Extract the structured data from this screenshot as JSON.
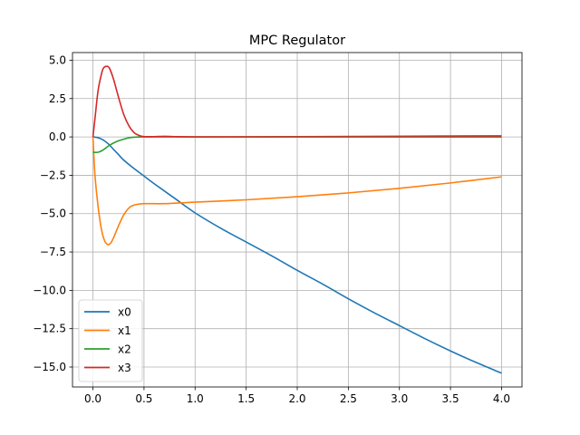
{
  "chart_data": {
    "type": "line",
    "title": "MPC Regulator",
    "xlabel": "",
    "ylabel": "",
    "xlim": [
      -0.2,
      4.2
    ],
    "ylim": [
      -16.3,
      5.5
    ],
    "grid": true,
    "legend_position": "lower-left",
    "x_ticks": [
      {
        "value": 0.0,
        "label": "0.0"
      },
      {
        "value": 0.5,
        "label": "0.5"
      },
      {
        "value": 1.0,
        "label": "1.0"
      },
      {
        "value": 1.5,
        "label": "1.5"
      },
      {
        "value": 2.0,
        "label": "2.0"
      },
      {
        "value": 2.5,
        "label": "2.5"
      },
      {
        "value": 3.0,
        "label": "3.0"
      },
      {
        "value": 3.5,
        "label": "3.5"
      },
      {
        "value": 4.0,
        "label": "4.0"
      }
    ],
    "y_ticks": [
      {
        "value": 5.0,
        "label": "5.0"
      },
      {
        "value": 2.5,
        "label": "2.5"
      },
      {
        "value": 0.0,
        "label": "0.0"
      },
      {
        "value": -2.5,
        "label": "−2.5"
      },
      {
        "value": -5.0,
        "label": "−5.0"
      },
      {
        "value": -7.5,
        "label": "−7.5"
      },
      {
        "value": -10.0,
        "label": "−10.0"
      },
      {
        "value": -12.5,
        "label": "−12.5"
      },
      {
        "value": -15.0,
        "label": "−15.0"
      }
    ],
    "series": [
      {
        "name": "x0",
        "color": "#1f77b4",
        "points": [
          [
            0,
            0
          ],
          [
            0.05,
            -0.05
          ],
          [
            0.1,
            -0.2
          ],
          [
            0.15,
            -0.45
          ],
          [
            0.2,
            -0.8
          ],
          [
            0.25,
            -1.15
          ],
          [
            0.3,
            -1.5
          ],
          [
            0.4,
            -2.05
          ],
          [
            0.5,
            -2.55
          ],
          [
            0.6,
            -3.05
          ],
          [
            0.8,
            -4.0
          ],
          [
            1.0,
            -4.95
          ],
          [
            1.25,
            -5.95
          ],
          [
            1.5,
            -6.85
          ],
          [
            1.75,
            -7.75
          ],
          [
            2.0,
            -8.7
          ],
          [
            2.25,
            -9.6
          ],
          [
            2.5,
            -10.55
          ],
          [
            2.75,
            -11.45
          ],
          [
            3.0,
            -12.3
          ],
          [
            3.25,
            -13.15
          ],
          [
            3.5,
            -13.95
          ],
          [
            3.75,
            -14.7
          ],
          [
            4.0,
            -15.4
          ]
        ]
      },
      {
        "name": "x1",
        "color": "#ff7f0e",
        "points": [
          [
            0,
            0
          ],
          [
            0.02,
            -2.5
          ],
          [
            0.05,
            -4.5
          ],
          [
            0.08,
            -5.9
          ],
          [
            0.11,
            -6.7
          ],
          [
            0.14,
            -7.0
          ],
          [
            0.17,
            -6.95
          ],
          [
            0.2,
            -6.6
          ],
          [
            0.25,
            -5.8
          ],
          [
            0.3,
            -5.1
          ],
          [
            0.35,
            -4.65
          ],
          [
            0.4,
            -4.45
          ],
          [
            0.5,
            -4.35
          ],
          [
            0.7,
            -4.35
          ],
          [
            1.0,
            -4.25
          ],
          [
            1.5,
            -4.1
          ],
          [
            2.0,
            -3.9
          ],
          [
            2.5,
            -3.65
          ],
          [
            3.0,
            -3.35
          ],
          [
            3.5,
            -3.0
          ],
          [
            4.0,
            -2.6
          ]
        ]
      },
      {
        "name": "x2",
        "color": "#2ca02c",
        "points": [
          [
            0,
            -1.0
          ],
          [
            0.05,
            -1.0
          ],
          [
            0.1,
            -0.85
          ],
          [
            0.15,
            -0.6
          ],
          [
            0.2,
            -0.4
          ],
          [
            0.25,
            -0.25
          ],
          [
            0.3,
            -0.15
          ],
          [
            0.35,
            -0.06
          ],
          [
            0.4,
            -0.02
          ],
          [
            0.5,
            0.0
          ],
          [
            1.0,
            0.0
          ],
          [
            2.0,
            0.02
          ],
          [
            3.0,
            0.05
          ],
          [
            4.0,
            0.08
          ]
        ]
      },
      {
        "name": "x3",
        "color": "#d62728",
        "points": [
          [
            0,
            0
          ],
          [
            0.02,
            1.2
          ],
          [
            0.05,
            3.0
          ],
          [
            0.08,
            4.0
          ],
          [
            0.1,
            4.45
          ],
          [
            0.13,
            4.6
          ],
          [
            0.16,
            4.5
          ],
          [
            0.2,
            3.8
          ],
          [
            0.25,
            2.6
          ],
          [
            0.3,
            1.5
          ],
          [
            0.35,
            0.75
          ],
          [
            0.4,
            0.3
          ],
          [
            0.45,
            0.1
          ],
          [
            0.5,
            0.02
          ],
          [
            0.6,
            0.02
          ],
          [
            0.7,
            0.04
          ],
          [
            0.8,
            0.02
          ],
          [
            1.0,
            0.0
          ],
          [
            1.5,
            0.0
          ],
          [
            2.0,
            0.0
          ],
          [
            3.0,
            0.0
          ],
          [
            4.0,
            0.0
          ]
        ]
      }
    ]
  }
}
